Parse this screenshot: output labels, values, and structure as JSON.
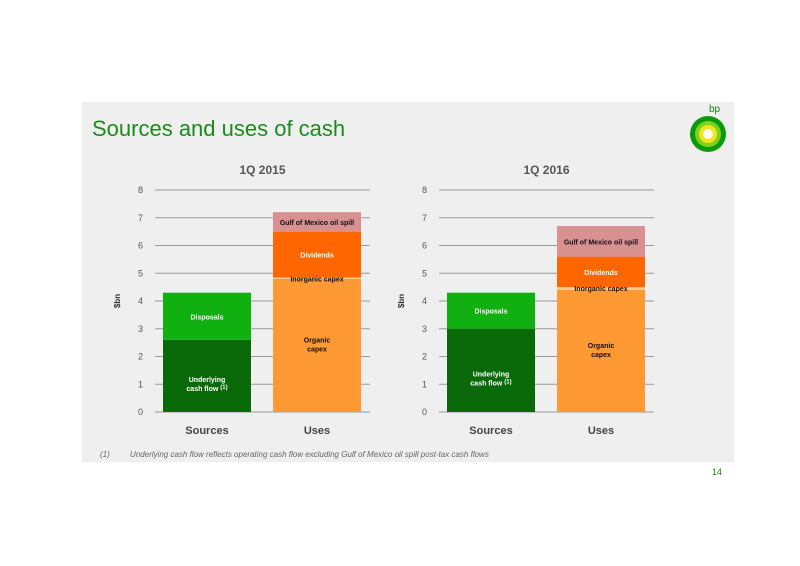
{
  "slide": {
    "title": "Sources and uses of cash",
    "logo_label": "bp",
    "page_number": "14",
    "footnote_marker": "(1)",
    "footnote_text": "Underlying cash flow reflects operating cash flow excluding Gulf of Mexico oil spill post-tax cash flows"
  },
  "chart_data": [
    {
      "type": "bar",
      "stacked": true,
      "title": "1Q 2015",
      "ylabel": "$bn",
      "ylim": [
        0,
        8
      ],
      "yticks": [
        "0",
        "1",
        "2",
        "3",
        "4",
        "5",
        "6",
        "7",
        "8"
      ],
      "categories": [
        "Sources",
        "Uses"
      ],
      "series": [
        {
          "name": "Underlying cash flow",
          "superscript": "(1)",
          "category": "Sources",
          "value": 2.6,
          "color": "#0a6a0a"
        },
        {
          "name": "Disposals",
          "category": "Sources",
          "value": 1.7,
          "color": "#10b010"
        },
        {
          "name": "Organic capex",
          "category": "Uses",
          "value": 4.8,
          "color": "#ff9933"
        },
        {
          "name": "Inorganic capex",
          "category": "Uses",
          "value": 0.05,
          "color": "#ffcc88"
        },
        {
          "name": "Dividends",
          "category": "Uses",
          "value": 1.65,
          "color": "#ff6600"
        },
        {
          "name": "Gulf of Mexico oil spill",
          "category": "Uses",
          "value": 0.7,
          "color": "#d99090"
        }
      ]
    },
    {
      "type": "bar",
      "stacked": true,
      "title": "1Q 2016",
      "ylabel": "$bn",
      "ylim": [
        0,
        8
      ],
      "yticks": [
        "0",
        "1",
        "2",
        "3",
        "4",
        "5",
        "6",
        "7",
        "8"
      ],
      "categories": [
        "Sources",
        "Uses"
      ],
      "series": [
        {
          "name": "Underlying cash flow",
          "superscript": "(1)",
          "category": "Sources",
          "value": 3.0,
          "color": "#0a6a0a"
        },
        {
          "name": "Disposals",
          "category": "Sources",
          "value": 1.3,
          "color": "#10b010"
        },
        {
          "name": "Organic capex",
          "category": "Uses",
          "value": 4.4,
          "color": "#ff9933"
        },
        {
          "name": "Inorganic capex",
          "category": "Uses",
          "value": 0.1,
          "color": "#ffcc88"
        },
        {
          "name": "Dividends",
          "category": "Uses",
          "value": 1.1,
          "color": "#ff6600"
        },
        {
          "name": "Gulf of Mexico oil spill",
          "category": "Uses",
          "value": 1.1,
          "color": "#d99090"
        }
      ]
    }
  ]
}
